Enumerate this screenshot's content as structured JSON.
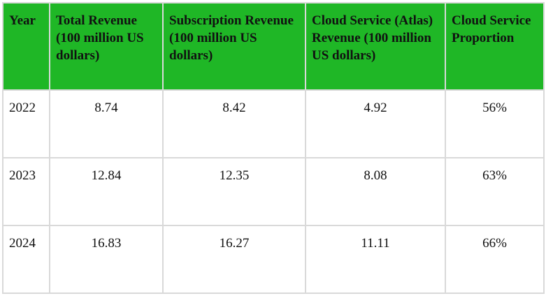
{
  "table": {
    "headers": [
      "Year",
      "Total Revenue (100 million US dollars)",
      "Subscription Revenue (100 million US dollars)",
      "Cloud Service (Atlas) Revenue (100 million US dollars)",
      "Cloud Service Proportion"
    ],
    "rows": [
      [
        "2022",
        "8.74",
        "8.42",
        "4.92",
        "56%"
      ],
      [
        "2023",
        "12.84",
        "12.35",
        "8.08",
        "63%"
      ],
      [
        "2024",
        "16.83",
        "16.27",
        "11.11",
        "66%"
      ]
    ]
  },
  "colors": {
    "header_background": "#1fb726",
    "border": "#d9d9d9",
    "text": "#111111"
  }
}
